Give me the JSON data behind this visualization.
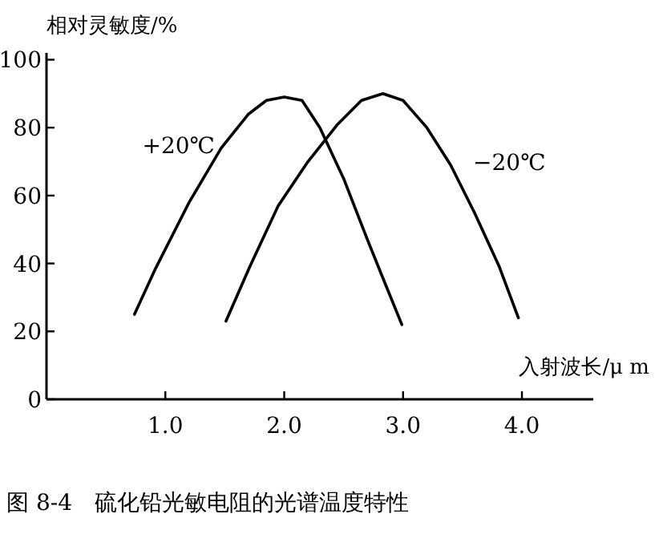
{
  "chart_data": {
    "type": "line",
    "xlabel": "入射波长/μ m",
    "ylabel": "相对灵敏度/%",
    "xlim": [
      0,
      4.6
    ],
    "ylim": [
      0,
      102
    ],
    "xticks": [
      {
        "value": 1,
        "label": "1.0"
      },
      {
        "value": 2,
        "label": "2.0"
      },
      {
        "value": 3,
        "label": "3.0"
      },
      {
        "value": 4,
        "label": "4.0"
      }
    ],
    "yticks": [
      0,
      20,
      40,
      60,
      80,
      100
    ],
    "grid": false,
    "marker": "none",
    "line_style": "solid",
    "series": [
      {
        "name": "+20℃",
        "color": "#000000",
        "x": [
          0.74,
          0.92,
          1.2,
          1.47,
          1.7,
          1.85,
          2.0,
          2.15,
          2.3,
          2.5,
          2.7,
          2.85,
          2.99
        ],
        "values": [
          25,
          38.7,
          58,
          74,
          84,
          88,
          89,
          88,
          80,
          65,
          47,
          34,
          22
        ]
      },
      {
        "name": "−20℃",
        "color": "#000000",
        "x": [
          1.51,
          1.71,
          1.95,
          2.2,
          2.45,
          2.65,
          2.83,
          3.0,
          3.2,
          3.4,
          3.6,
          3.81,
          3.97
        ],
        "values": [
          23,
          39,
          57,
          70,
          81,
          88,
          90,
          88,
          80,
          69,
          55,
          39,
          24
        ]
      }
    ],
    "annotations": [
      "图 8-4　硫化铅光敏电阻的光谱温度特性"
    ]
  }
}
